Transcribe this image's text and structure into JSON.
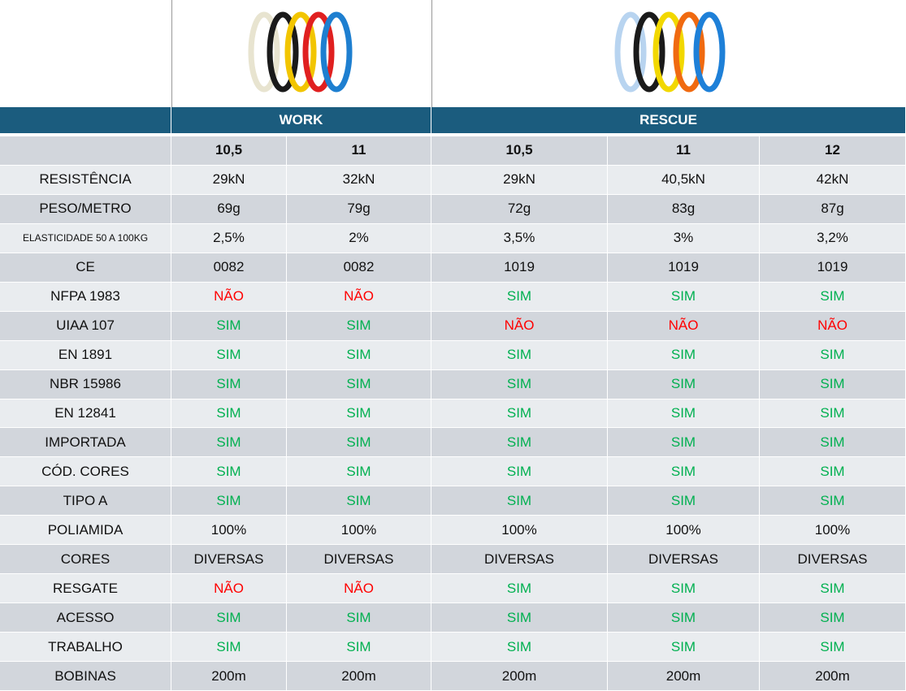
{
  "table": {
    "groups": [
      "WORK",
      "RESCUE"
    ],
    "sizes": [
      "10,5",
      "11",
      "10,5",
      "11",
      "12"
    ],
    "rows": [
      {
        "label": "RESISTÊNCIA",
        "values": [
          "29kN",
          "32kN",
          "29kN",
          "40,5kN",
          "42kN"
        ]
      },
      {
        "label": "PESO/METRO",
        "values": [
          "69g",
          "79g",
          "72g",
          "83g",
          "87g"
        ]
      },
      {
        "label": "ELASTICIDADE 50 A 100KG",
        "values": [
          "2,5%",
          "2%",
          "3,5%",
          "3%",
          "3,2%"
        ]
      },
      {
        "label": "CE",
        "values": [
          "0082",
          "0082",
          "1019",
          "1019",
          "1019"
        ]
      },
      {
        "label": "NFPA 1983",
        "values": [
          "NÃO",
          "NÃO",
          "SIM",
          "SIM",
          "SIM"
        ],
        "colors": [
          "#ff0000",
          "#ff0000",
          "#00b050",
          "#00b050",
          "#00b050"
        ]
      },
      {
        "label": "UIAA 107",
        "values": [
          "SIM",
          "SIM",
          "NÃO",
          "NÃO",
          "NÃO"
        ],
        "colors": [
          "#00b050",
          "#00b050",
          "#ff0000",
          "#ff0000",
          "#ff0000"
        ]
      },
      {
        "label": "EN 1891",
        "values": [
          "SIM",
          "SIM",
          "SIM",
          "SIM",
          "SIM"
        ],
        "colors": [
          "#00b050",
          "#00b050",
          "#00b050",
          "#00b050",
          "#00b050"
        ]
      },
      {
        "label": "NBR 15986",
        "values": [
          "SIM",
          "SIM",
          "SIM",
          "SIM",
          "SIM"
        ],
        "colors": [
          "#00b050",
          "#00b050",
          "#00b050",
          "#00b050",
          "#00b050"
        ]
      },
      {
        "label": "EN 12841",
        "values": [
          "SIM",
          "SIM",
          "SIM",
          "SIM",
          "SIM"
        ],
        "colors": [
          "#00b050",
          "#00b050",
          "#00b050",
          "#00b050",
          "#00b050"
        ]
      },
      {
        "label": "IMPORTADA",
        "values": [
          "SIM",
          "SIM",
          "SIM",
          "SIM",
          "SIM"
        ],
        "colors": [
          "#00b050",
          "#00b050",
          "#00b050",
          "#00b050",
          "#00b050"
        ]
      },
      {
        "label": "CÓD. CORES",
        "values": [
          "SIM",
          "SIM",
          "SIM",
          "SIM",
          "SIM"
        ],
        "colors": [
          "#00b050",
          "#00b050",
          "#00b050",
          "#00b050",
          "#00b050"
        ]
      },
      {
        "label": "TIPO A",
        "values": [
          "SIM",
          "SIM",
          "SIM",
          "SIM",
          "SIM"
        ],
        "colors": [
          "#00b050",
          "#00b050",
          "#00b050",
          "#00b050",
          "#00b050"
        ]
      },
      {
        "label": "POLIAMIDA",
        "values": [
          "100%",
          "100%",
          "100%",
          "100%",
          "100%"
        ]
      },
      {
        "label": "CORES",
        "values": [
          "DIVERSAS",
          "DIVERSAS",
          "DIVERSAS",
          "DIVERSAS",
          "DIVERSAS"
        ]
      },
      {
        "label": "RESGATE",
        "values": [
          "NÃO",
          "NÃO",
          "SIM",
          "SIM",
          "SIM"
        ],
        "colors": [
          "#ff0000",
          "#ff0000",
          "#00b050",
          "#00b050",
          "#00b050"
        ]
      },
      {
        "label": "ACESSO",
        "values": [
          "SIM",
          "SIM",
          "SIM",
          "SIM",
          "SIM"
        ],
        "colors": [
          "#00b050",
          "#00b050",
          "#00b050",
          "#00b050",
          "#00b050"
        ]
      },
      {
        "label": "TRABALHO",
        "values": [
          "SIM",
          "SIM",
          "SIM",
          "SIM",
          "SIM"
        ],
        "colors": [
          "#00b050",
          "#00b050",
          "#00b050",
          "#00b050",
          "#00b050"
        ]
      },
      {
        "label": "BOBINAS",
        "values": [
          "200m",
          "200m",
          "200m",
          "200m",
          "200m"
        ]
      }
    ]
  }
}
